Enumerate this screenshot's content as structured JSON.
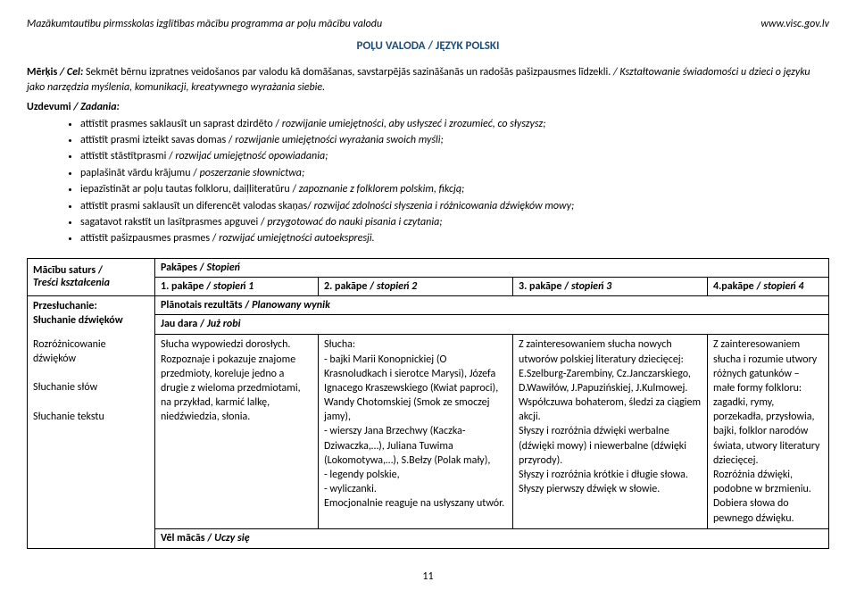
{
  "header": {
    "left": "Mazākumtautību pirmsskolas izglītības mācību programma ar poļu mācību valodu",
    "right": "www.visc.gov.lv"
  },
  "title": "POĻU VALODA / JĘZYK POLSKI",
  "intro": {
    "label_bold": "Mērķis",
    "label_italic": " / Cel:",
    "text": " Sekmēt bērnu izpratnes veidošanos par valodu kā domāšanas, savstarpējās sazināšanās un radošās pašizpausmes līdzekli. ",
    "italic_tail": "/ Kształtowanie świadomości u dzieci o języku jako narzędzia myślenia, komunikacji, kreatywnego wyrażania siebie."
  },
  "uzdevumi": {
    "bold": "Uzdevumi",
    "italic": " / Zadania:"
  },
  "bullets": [
    {
      "p": "attīstīt prasmes saklausīt un saprast dzirdēto / ",
      "i": "rozwijanie umiejętności, aby usłyszeć i zrozumieć, co słyszysz;"
    },
    {
      "p": "attīstīt prasmi izteikt savas domas / ",
      "i": "rozwijanie umiejętności wyrażania swoich myśli;"
    },
    {
      "p": "attīstīt stāstītprasmi / ",
      "i": "rozwijać umiejętność opowiadania;"
    },
    {
      "p": "paplašināt vārdu krājumu / ",
      "i": "poszerzanie słownictwa;"
    },
    {
      "p": "iepazīstināt ar poļu tautas folkloru, daiļliteratūru / ",
      "i": "zapoznanie z folklorem polskim, fikcją;"
    },
    {
      "p": "attīstīt prasmi saklausīt un diferencēt valodas skaņas/ ",
      "i": "rozwijać zdolności słyszenia i różnicowania dźwięków mowy;"
    },
    {
      "p": "sagatavot rakstīt un lasītprasmes apguvei / ",
      "i": "przygotować do nauki pisania i czytania;"
    },
    {
      "p": "attīstīt pašizpausmes prasmes / ",
      "i": "rozwijać umiejętności autoekspresji."
    }
  ],
  "table": {
    "col0_hdr": {
      "p": "Mācību saturs /",
      "i": "Treści kształcenia"
    },
    "pakapes": {
      "p": "Pakāpes / ",
      "i": "Stopień"
    },
    "cols": [
      {
        "p": "1. pakāpe / ",
        "i": "stopień 1"
      },
      {
        "p": "2. pakāpe / ",
        "i": "stopień 2"
      },
      {
        "p": "3. pakāpe / ",
        "i": "stopień 3"
      },
      {
        "p": "4.pakāpe / ",
        "i": "stopień 4"
      }
    ],
    "planotais": {
      "p": "Plānotais rezultāts / ",
      "i": "Planowany wynik"
    },
    "row_left_top": "Przesłuchanie:\nSłuchanie dźwięków",
    "row_left_list": "Rozróżnicowanie dźwięków\n\nSłuchanie słów\n\nSłuchanie tekstu",
    "jau_dara": {
      "p": "Jau dara / ",
      "i": "Już robi"
    },
    "c1": "Słucha wypowiedzi dorosłych. Rozpoznaje i pokazuje znajome przedmioty, koreluje jedno a drugie z wieloma przedmiotami, na przykład, karmić lalkę, niedźwiedzia, słonia.",
    "c2": "Słucha:\n - bajki Marii Konopnickiej (O Krasnoludkach i sierotce Marysi), Józefa Ignacego Kraszewskiego (Kwiat paproci), Wandy Chotomskiej (Smok ze smoczej jamy),\n - wierszy Jana Brzechwy (Kaczka-Dziwaczka,…), Juliana Tuwima (Lokomotywa,…), S.Bełzy (Polak mały),\n - legendy polskie,\n - wyliczanki.\nEmocjonalnie reaguje na usłyszany utwór.",
    "c3": "Z zainteresowaniem słucha nowych utworów polskiej literatury dziecięcej: E.Szelburg-Zarembiny, Cz.Janczarskiego, D.Wawiłów, J.Papuzińskiej, J.Kulmowej.\nWspółczuwa bohaterom, śledzi za ciągiem akcji.\nSłyszy i rozróżnia dźwięki werbalne (dźwięki mowy) i niewerbalne (dźwięki przyrody).\nSłyszy i rozróżnia krótkie i długie słowa.\nSłyszy pierwszy dźwięk w słowie.",
    "c4": "Z zainteresowaniem słucha i rozumie utwory różnych gatunków – małe formy folkloru: zagadki, rymy, porzekadła, przysłowia, bajki, folklor narodów świata, utwory literatury dziecięcej.\nRozróżnia dźwięki, podobne w brzmieniu.\nDobiera słowa do pewnego dźwięku.",
    "vel_macas": {
      "p": "Vēl mācās / ",
      "i": "Uczy się"
    }
  },
  "pagenum": "11"
}
